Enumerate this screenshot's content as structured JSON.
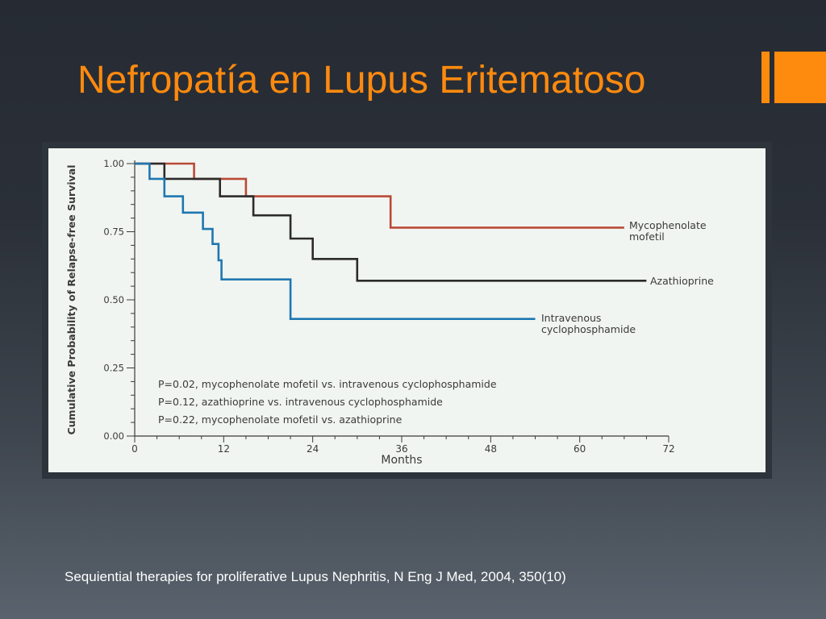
{
  "slide": {
    "title": "Nefropatía en Lupus Eritematoso",
    "caption": "Sequiential therapies for proliferative Lupus Nephritis, N Eng J Med, 2004, 350(10)",
    "accent_color": "#fe8a0e"
  },
  "chart_data": {
    "type": "line",
    "step": true,
    "xlabel": "Months",
    "ylabel": "Cumulative Probability of Relapse-free Survival",
    "xlim": [
      0,
      72
    ],
    "ylim": [
      0,
      1
    ],
    "x_ticks": [
      0,
      12,
      24,
      36,
      48,
      60,
      72
    ],
    "x_tick_labels": [
      "0",
      "12",
      "24",
      "36",
      "48",
      "60",
      "72"
    ],
    "y_ticks": [
      0,
      0.25,
      0.5,
      0.75,
      1
    ],
    "y_tick_labels": [
      "0.00",
      "0.25",
      "0.50",
      "0.75",
      "1.00"
    ],
    "grid": false,
    "series": [
      {
        "name": "Mycophenolate mofetil",
        "label_lines": [
          "Mycophenolate",
          "mofetil"
        ],
        "color": "#b94a36",
        "points": [
          [
            0,
            1.0
          ],
          [
            8,
            1.0
          ],
          [
            8,
            0.944
          ],
          [
            15,
            0.944
          ],
          [
            15,
            0.88
          ],
          [
            34.5,
            0.88
          ],
          [
            34.5,
            0.765
          ],
          [
            66,
            0.765
          ]
        ]
      },
      {
        "name": "Azathioprine",
        "label_lines": [
          "Azathioprine"
        ],
        "color": "#2b2b2b",
        "points": [
          [
            0,
            1.0
          ],
          [
            4,
            1.0
          ],
          [
            4,
            0.944
          ],
          [
            11.5,
            0.944
          ],
          [
            11.5,
            0.88
          ],
          [
            16,
            0.88
          ],
          [
            16,
            0.81
          ],
          [
            21,
            0.81
          ],
          [
            21,
            0.725
          ],
          [
            24,
            0.725
          ],
          [
            24,
            0.65
          ],
          [
            30,
            0.65
          ],
          [
            30,
            0.57
          ],
          [
            69,
            0.57
          ]
        ]
      },
      {
        "name": "Intravenous cyclophosphamide",
        "label_lines": [
          "Intravenous",
          "cyclophosphamide"
        ],
        "color": "#1f77b1",
        "points": [
          [
            0,
            1.0
          ],
          [
            2,
            1.0
          ],
          [
            2,
            0.944
          ],
          [
            4,
            0.944
          ],
          [
            4,
            0.88
          ],
          [
            6.5,
            0.88
          ],
          [
            6.5,
            0.82
          ],
          [
            9.2,
            0.82
          ],
          [
            9.2,
            0.76
          ],
          [
            10.5,
            0.76
          ],
          [
            10.5,
            0.705
          ],
          [
            11.3,
            0.705
          ],
          [
            11.3,
            0.645
          ],
          [
            11.7,
            0.645
          ],
          [
            11.7,
            0.575
          ],
          [
            21,
            0.575
          ],
          [
            21,
            0.43
          ],
          [
            54,
            0.43
          ]
        ]
      }
    ],
    "annotations": [
      "P=0.02, mycophenolate mofetil vs. intravenous cyclophosphamide",
      "P=0.12, azathioprine vs. intravenous cyclophosphamide",
      "P=0.22, mycophenolate mofetil vs. azathioprine"
    ]
  }
}
